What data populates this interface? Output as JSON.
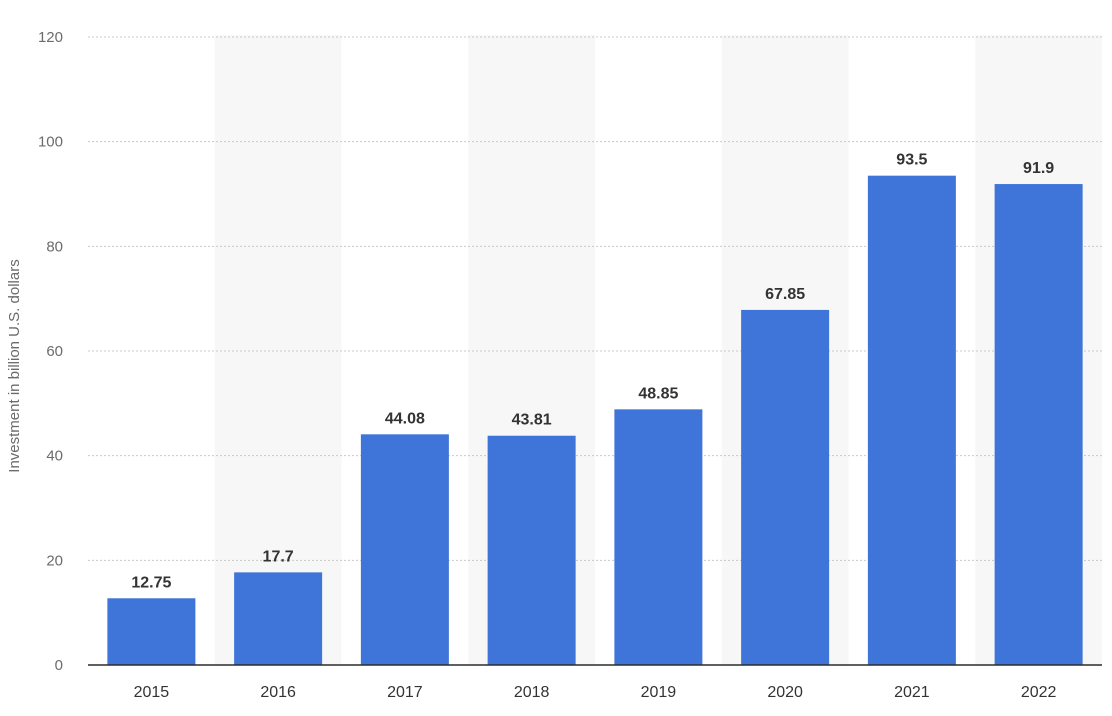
{
  "chart_data": {
    "type": "bar",
    "categories": [
      "2015",
      "2016",
      "2017",
      "2018",
      "2019",
      "2020",
      "2021",
      "2022"
    ],
    "values": [
      12.75,
      17.7,
      44.08,
      43.81,
      48.85,
      67.85,
      93.5,
      91.9
    ],
    "data_labels": [
      "12.75",
      "17.7",
      "44.08",
      "43.81",
      "48.85",
      "67.85",
      "93.5",
      "91.9"
    ],
    "title": "",
    "xlabel": "",
    "ylabel": "Investment in billion U.S. dollars",
    "ylim": [
      0,
      120
    ],
    "yticks": [
      0,
      20,
      40,
      60,
      80,
      100,
      120
    ],
    "grid": true,
    "legend": "none",
    "bar_color": "#3f74d8",
    "band_color": "#f7f7f7",
    "grid_color": "#c9c9c9"
  }
}
